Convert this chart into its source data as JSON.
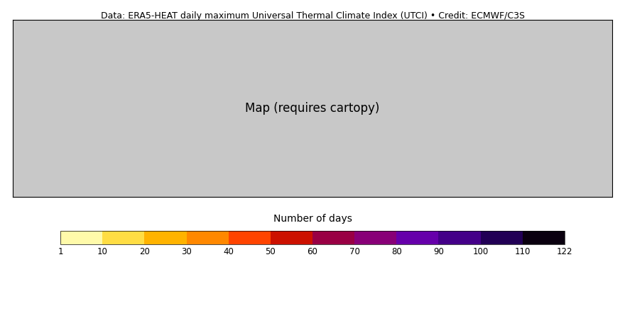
{
  "title": "Data: ERA5-HEAT daily maximum Universal Thermal Climate Index (UTCI) • Credit: ECMWF/C3S",
  "title_fontsize": 9,
  "colorbar_label": "Number of days",
  "colorbar_label_fontsize": 10,
  "tick_labels": [
    1,
    10,
    20,
    30,
    40,
    50,
    60,
    70,
    80,
    90,
    100,
    110,
    122
  ],
  "colors": [
    "#FFFAAA",
    "#FFDD44",
    "#FFB300",
    "#FF8800",
    "#FF4400",
    "#CC1100",
    "#990044",
    "#880077",
    "#6600AA",
    "#440088",
    "#220055",
    "#0A000F"
  ],
  "map_extent": [
    -15,
    50,
    25,
    65
  ],
  "background_color": "#FFFFFF",
  "map_background": "#C8C8C8",
  "ocean_color": "#FFFFFF",
  "land_border_color": "#000000",
  "map_border_color": "#000000",
  "fig_width": 8.8,
  "fig_height": 4.66,
  "dpi": 100
}
